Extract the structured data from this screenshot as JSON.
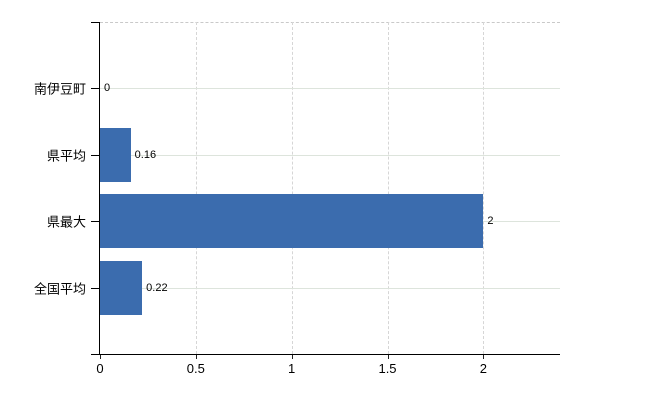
{
  "chart": {
    "background": "#ffffff",
    "bar_color": "#3b6cae",
    "axis_color": "#000000",
    "h_grid_color": "#dde4dc",
    "v_grid_color": "#d6d6d6",
    "top_border_color": "#c9c9c9",
    "text_color": "#000000"
  },
  "chart_data": {
    "type": "bar",
    "orientation": "horizontal",
    "title": "",
    "categories": [
      "南伊豆町",
      "県平均",
      "県最大",
      "全国平均"
    ],
    "values": [
      0,
      0.16,
      2,
      0.22
    ],
    "value_labels": [
      "0",
      "0.16",
      "2",
      "0.22"
    ],
    "x_tick_values": [
      0,
      0.5,
      1,
      1.5,
      2
    ],
    "x_tick_labels": [
      "0",
      "0.5",
      "1",
      "1.5",
      "2"
    ],
    "xlim": [
      0,
      2.4
    ],
    "grid": "on",
    "legend_position": "none"
  }
}
